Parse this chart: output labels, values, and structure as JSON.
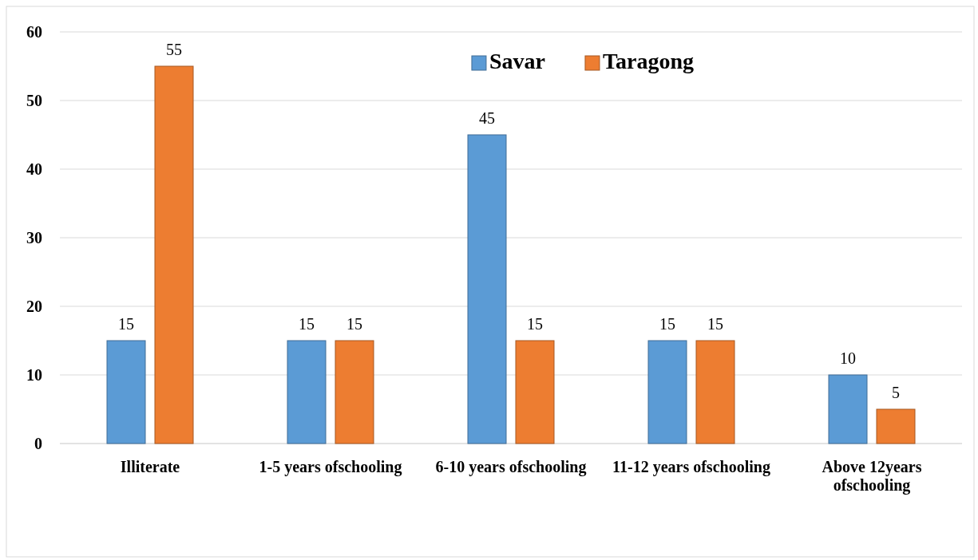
{
  "chart_data": {
    "type": "bar",
    "categories": [
      "Illiterate",
      "1-5 years ofschooling",
      "6-10 years ofschooling",
      "11-12 years ofschooling",
      "Above 12years ofschooling"
    ],
    "series": [
      {
        "name": "Savar",
        "color": "#5b9bd5",
        "values": [
          15,
          15,
          45,
          15,
          10
        ]
      },
      {
        "name": "Taragong",
        "color": "#ed7d31",
        "values": [
          55,
          15,
          15,
          15,
          5
        ]
      }
    ],
    "ylim": [
      0,
      60
    ],
    "yticks": [
      0,
      10,
      20,
      30,
      40,
      50,
      60
    ],
    "grid": "y",
    "legend": "top",
    "data_labels": true
  }
}
